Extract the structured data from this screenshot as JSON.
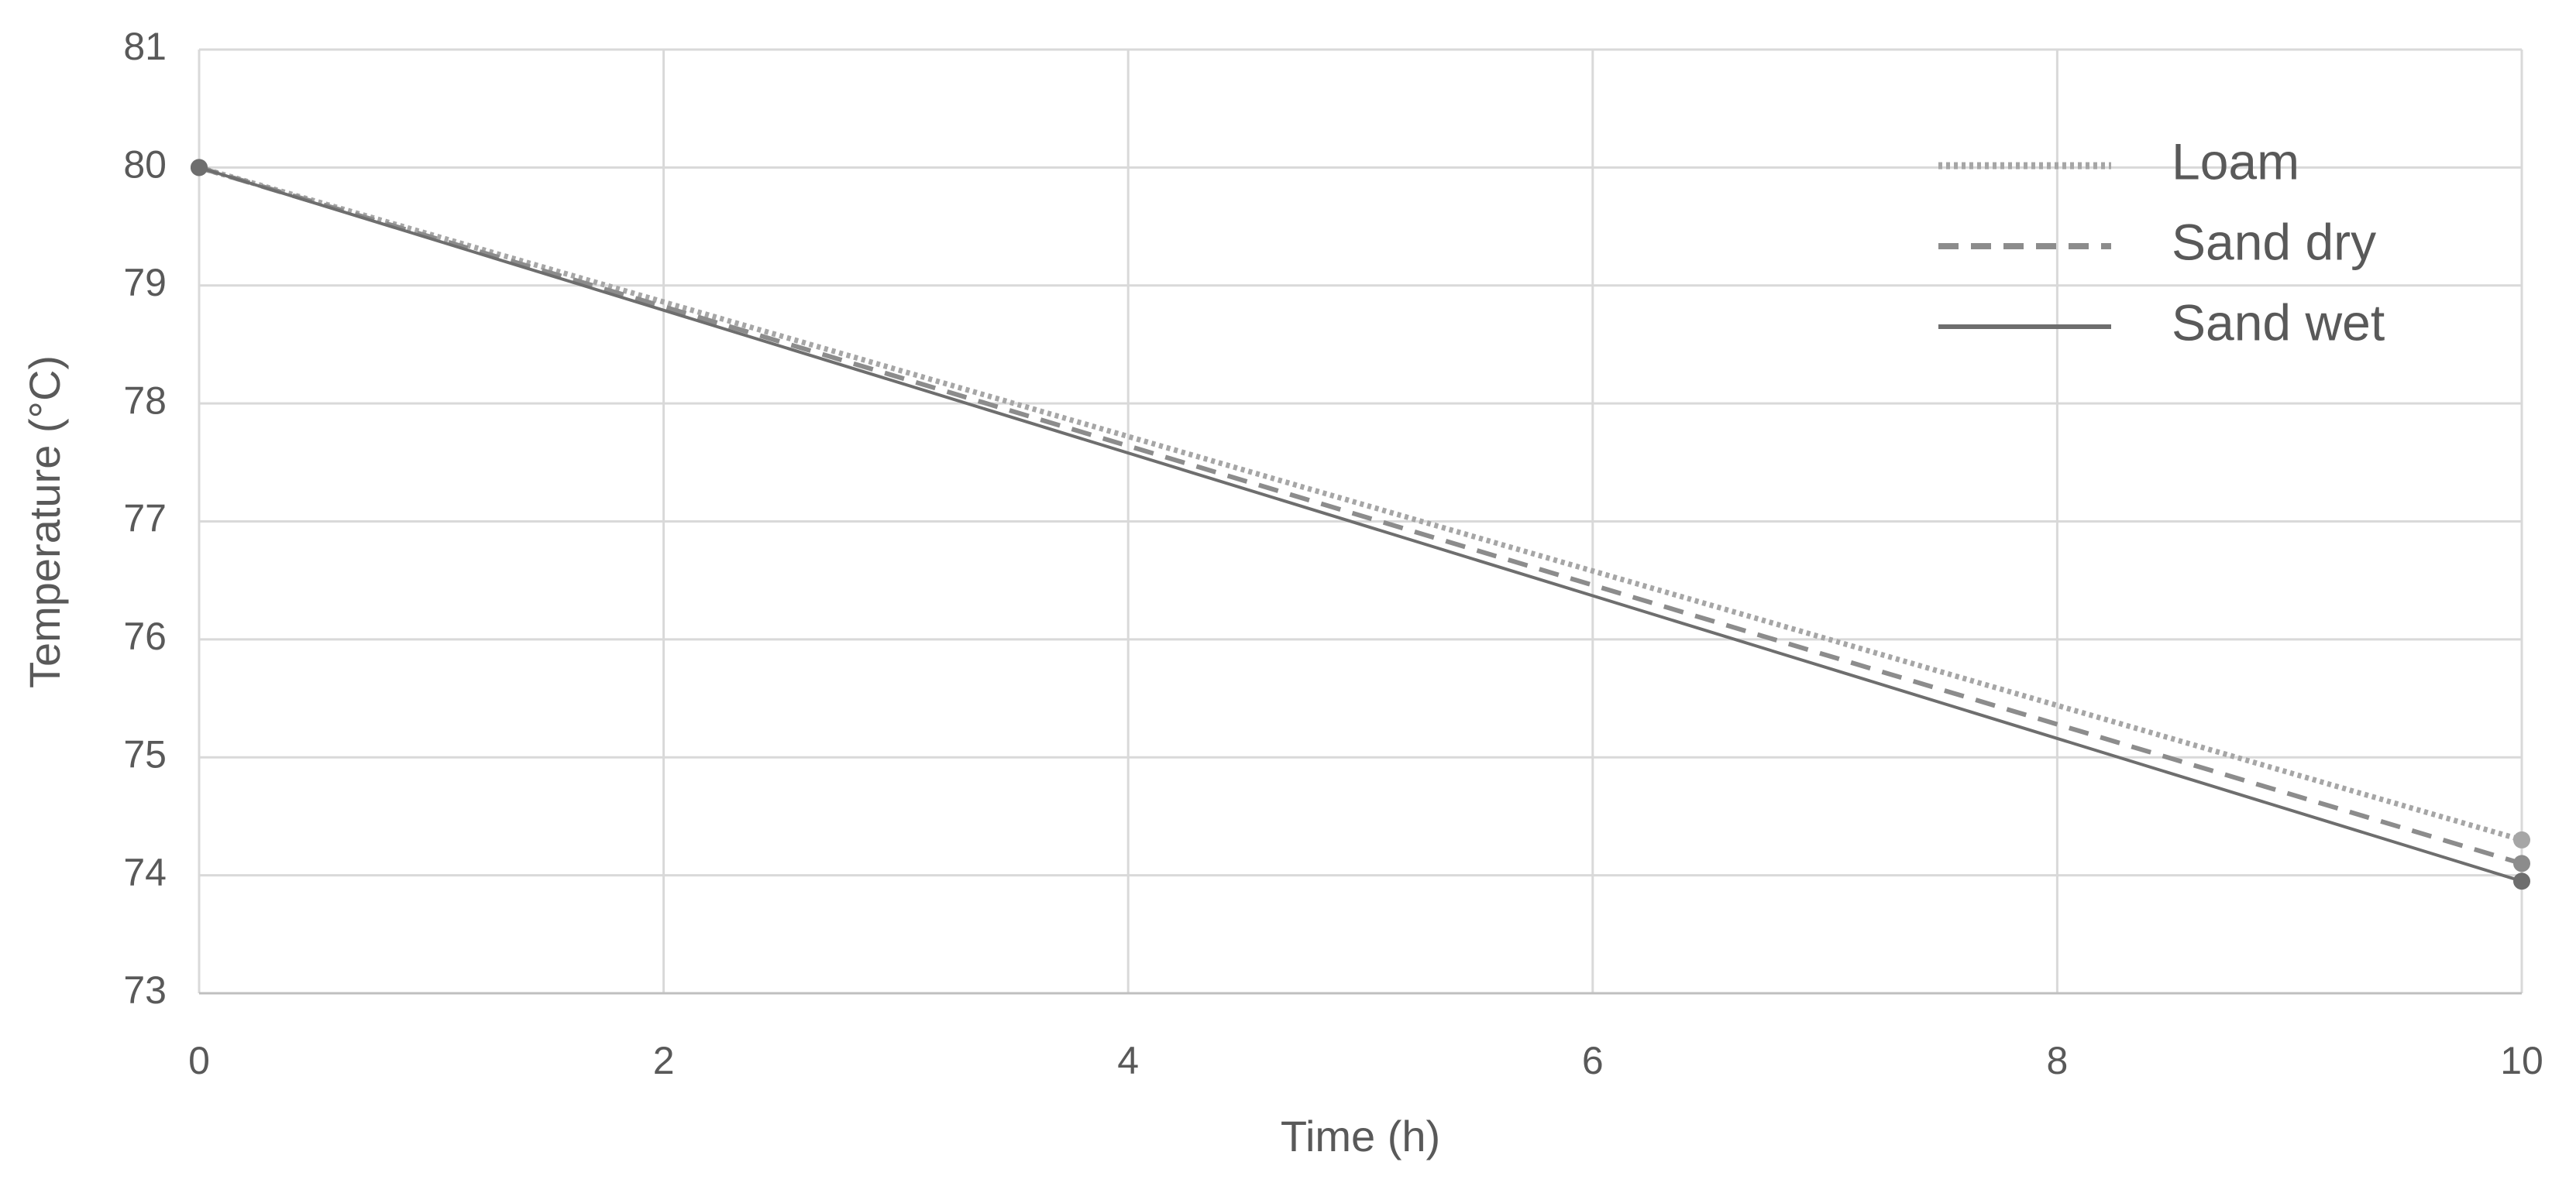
{
  "chart_data": {
    "type": "line",
    "x_label": "Time (h)",
    "y_label": "Temperature (°C)",
    "x": [
      0,
      10
    ],
    "series": [
      {
        "name": "Loam",
        "color": "#a6a6a6",
        "dash": "dotted",
        "values": [
          80,
          74.3
        ]
      },
      {
        "name": "Sand dry",
        "color": "#8c8c8c",
        "dash": "dashed",
        "values": [
          80,
          74.1
        ]
      },
      {
        "name": "Sand wet",
        "color": "#6e6e6e",
        "dash": "solid",
        "values": [
          80,
          73.95
        ]
      }
    ],
    "xlim": [
      0,
      10
    ],
    "xticks": [
      0,
      2,
      4,
      6,
      8,
      10
    ],
    "ylim": [
      73,
      81
    ],
    "yticks": [
      73,
      74,
      75,
      76,
      77,
      78,
      79,
      80,
      81
    ],
    "grid": true,
    "legend": "upper right",
    "markers": true
  }
}
